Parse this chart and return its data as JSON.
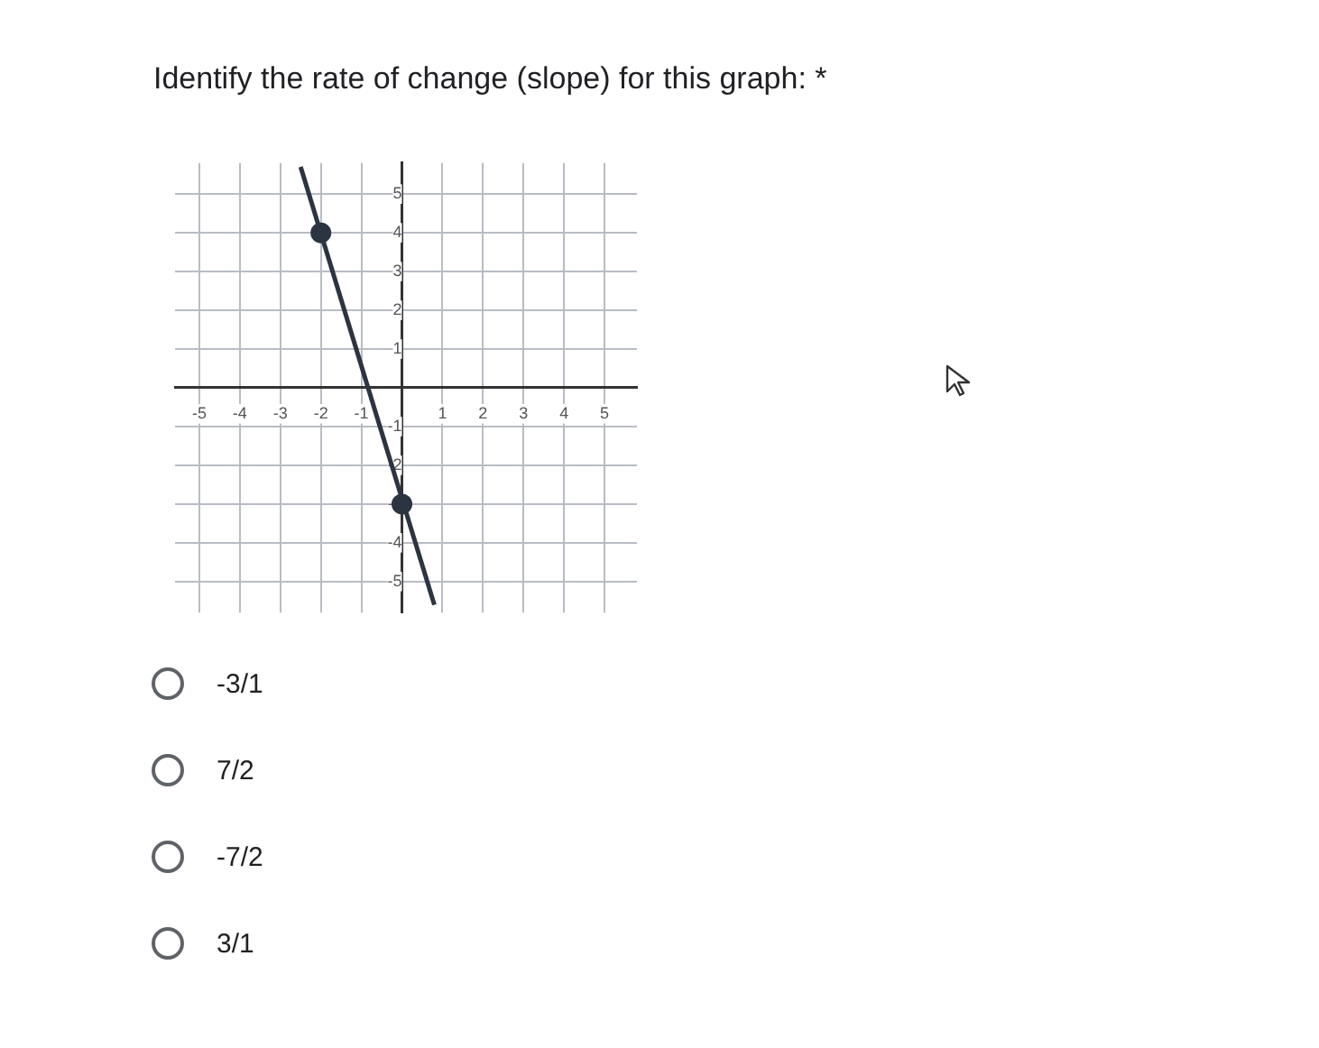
{
  "chart_data": {
    "type": "line",
    "title": "Identify the rate of change (slope) for this graph: *",
    "series": [
      {
        "color": "#2b3440",
        "x": [
          -2.5,
          0.8
        ],
        "values": [
          5.7,
          -5.6
        ],
        "marker": "none"
      },
      {
        "type": "scatter",
        "color": "#2b3440",
        "x": [
          -2,
          0
        ],
        "values": [
          4,
          -3
        ],
        "marker": "circle"
      }
    ],
    "xlim": [
      -5.6,
      5.8
    ],
    "ylim": [
      -5.8,
      5.8
    ],
    "xticks": [
      -5,
      -4,
      -3,
      -2,
      -1,
      {
        "value": 0,
        "label": null
      },
      1,
      2,
      3,
      4,
      5
    ],
    "yticks": [
      -5,
      -4,
      -3,
      -2,
      -1,
      {
        "value": 0,
        "label": null
      },
      1,
      2,
      3,
      4,
      5
    ],
    "grid": true,
    "annotations": [
      "-3/1",
      "7/2",
      "-7/2",
      "3/1"
    ]
  }
}
